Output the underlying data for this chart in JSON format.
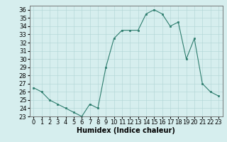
{
  "x": [
    0,
    1,
    2,
    3,
    4,
    5,
    6,
    7,
    8,
    9,
    10,
    11,
    12,
    13,
    14,
    15,
    16,
    17,
    18,
    19,
    20,
    21,
    22,
    23
  ],
  "y": [
    26.5,
    26.0,
    25.0,
    24.5,
    24.0,
    23.5,
    23.0,
    24.5,
    24.0,
    29.0,
    32.5,
    33.5,
    33.5,
    33.5,
    35.5,
    36.0,
    35.5,
    34.0,
    34.5,
    30.0,
    32.5,
    27.0,
    26.0,
    25.5
  ],
  "xlim": [
    -0.5,
    23.5
  ],
  "ylim": [
    23,
    36
  ],
  "xticks": [
    0,
    1,
    2,
    3,
    4,
    5,
    6,
    7,
    8,
    9,
    10,
    11,
    12,
    13,
    14,
    15,
    16,
    17,
    18,
    19,
    20,
    21,
    22,
    23
  ],
  "yticks": [
    23,
    24,
    25,
    26,
    27,
    28,
    29,
    30,
    31,
    32,
    33,
    34,
    35,
    36
  ],
  "xlabel": "Humidex (Indice chaleur)",
  "line_color": "#2e7d6e",
  "marker_color": "#2e7d6e",
  "bg_color": "#d6eeee",
  "grid_color": "#b0d4d4",
  "label_fontsize": 7,
  "tick_fontsize": 6
}
